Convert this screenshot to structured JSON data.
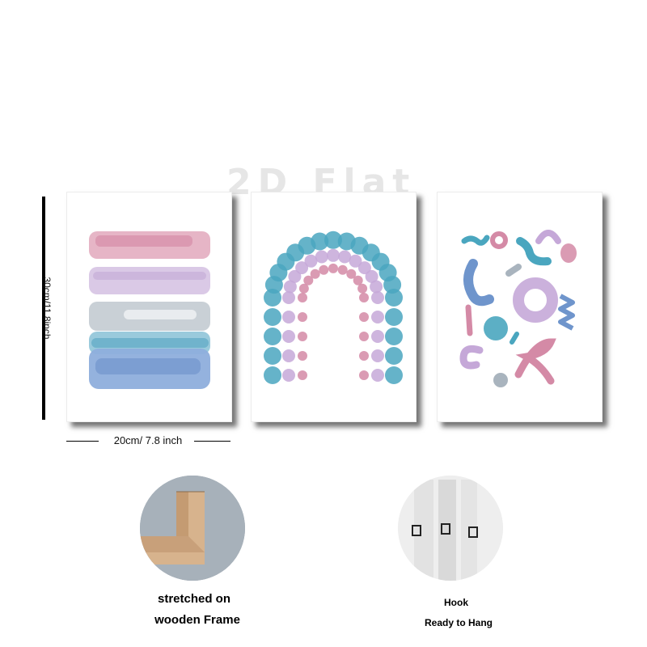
{
  "watermark": "2D Flat",
  "dimensions": {
    "height_label": "30cm/11.8inch",
    "width_label": "20cm/ 7.8 inch"
  },
  "features": [
    {
      "caption_line1": "stretched on",
      "caption_line2": "wooden Frame"
    },
    {
      "caption_line1": "Hook",
      "caption_line2": "Ready to Hang"
    }
  ],
  "colors": {
    "pink": "#d48aa6",
    "lavender": "#c5a8d8",
    "grey": "#a9b4be",
    "teal": "#4aa6bf",
    "blue": "#6f95cc"
  }
}
